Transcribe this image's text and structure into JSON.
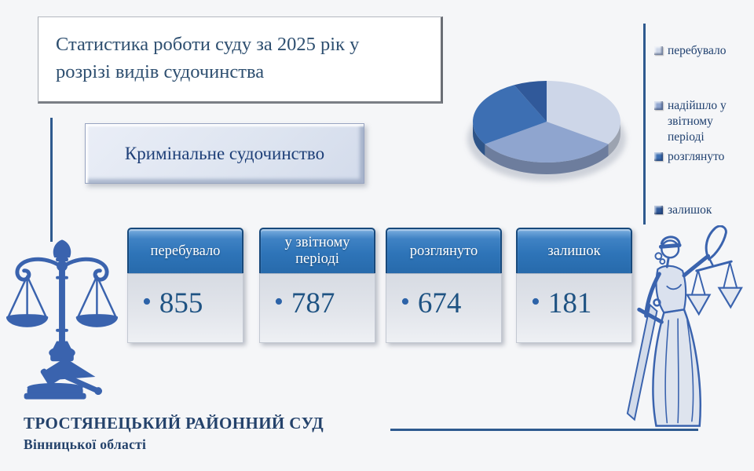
{
  "title": "Статистика роботи суду за 2025 рік у розрізі видів судочинства",
  "subtitle": "Кримінальне судочинство",
  "bullet": "•",
  "stats": [
    {
      "label": "перебувало",
      "value": "855"
    },
    {
      "label": "у звітному періоді",
      "value": "787"
    },
    {
      "label": "розглянуто",
      "value": "674"
    },
    {
      "label": "залишок",
      "value": "181"
    }
  ],
  "chart_data": {
    "type": "pie",
    "style": "3d",
    "labels": [
      "перебувало",
      "надійшло у звітному періоді",
      "розглянуто",
      "залишок"
    ],
    "values": [
      855,
      787,
      674,
      181
    ],
    "colors": [
      "#cdd6e8",
      "#8fa5cf",
      "#3d6fb3",
      "#30599a"
    ],
    "legend_position": "right",
    "start_angle_deg": 0,
    "clockwise": true
  },
  "footer": {
    "court_name": "ТРОСТЯНЕЦЬКИЙ РАЙОННИЙ СУД",
    "court_region": "Вінницької області"
  },
  "icons": {
    "left": "scales-with-gavel",
    "right": "lady-justice"
  },
  "colors": {
    "background": "#f5f6f8",
    "title_text": "#2e4f70",
    "subtitle_text": "#1e3f78",
    "accent_line": "#2e5a8f",
    "legend_text": "#1e3f6e",
    "value_text": "#1f5383",
    "card_header_top": "#7db0e0",
    "card_header_mid": "#2e74b8",
    "card_header_border": "#17497c",
    "footer_text": "#24426b",
    "icon_blue": "#3a63ae"
  }
}
